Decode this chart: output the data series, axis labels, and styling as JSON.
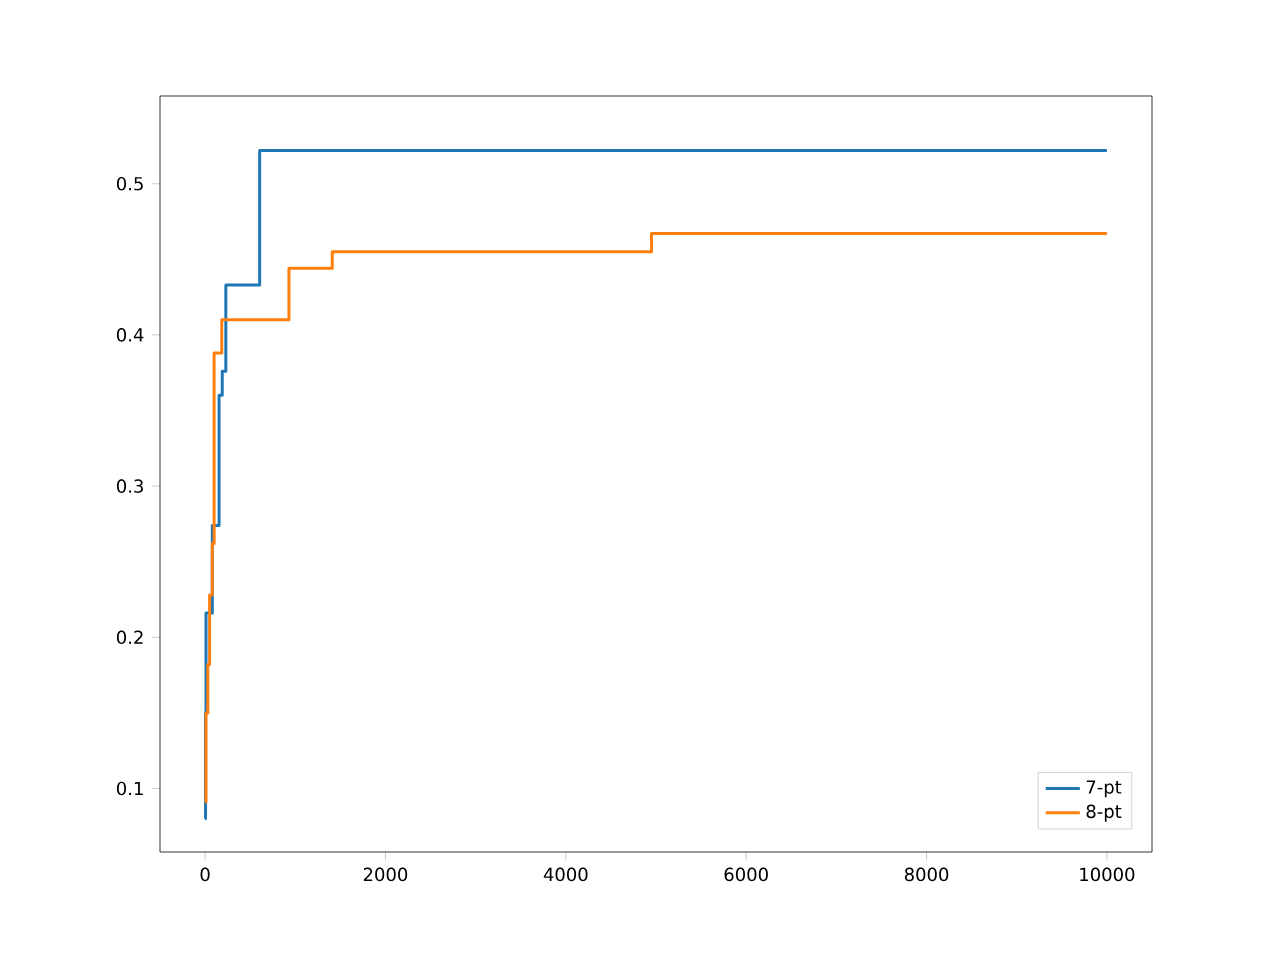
{
  "chart_data": {
    "type": "step",
    "xlim": [
      -500,
      10500
    ],
    "ylim": [
      0.058,
      0.558
    ],
    "xticks": [
      0,
      2000,
      4000,
      6000,
      8000,
      10000
    ],
    "yticks": [
      0.1,
      0.2,
      0.3,
      0.4,
      0.5
    ],
    "legend": "bottom right",
    "grid": false,
    "line_style": "solid",
    "marker": "none",
    "series": [
      {
        "name": "7-pt",
        "color": "#1f77b4",
        "x": [
          0,
          5,
          10,
          80,
          155,
          190,
          230,
          605,
          10000
        ],
        "values": [
          0.08,
          0.15,
          0.216,
          0.274,
          0.36,
          0.376,
          0.433,
          0.522,
          0.522
        ]
      },
      {
        "name": "8-pt",
        "color": "#ff7f0e",
        "x": [
          0,
          10,
          30,
          50,
          80,
          100,
          185,
          930,
          1410,
          4950,
          10000
        ],
        "values": [
          0.091,
          0.15,
          0.182,
          0.228,
          0.262,
          0.388,
          0.41,
          0.444,
          0.455,
          0.467,
          0.467
        ]
      }
    ]
  }
}
